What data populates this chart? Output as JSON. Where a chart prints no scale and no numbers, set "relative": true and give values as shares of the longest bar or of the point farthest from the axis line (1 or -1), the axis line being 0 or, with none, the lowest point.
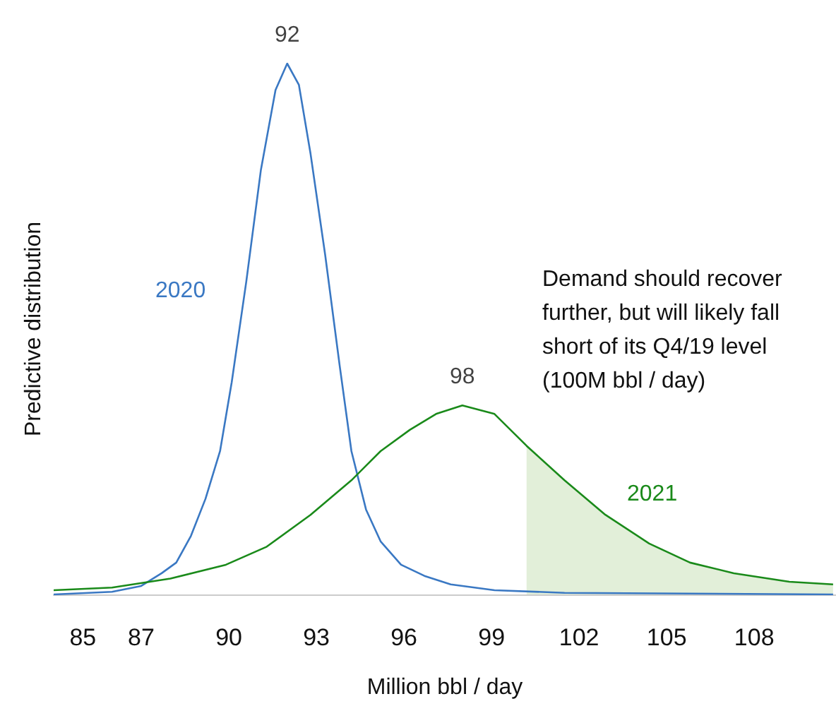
{
  "chart_data": {
    "type": "line",
    "relative": true,
    "xlabel": "Million bbl / day",
    "ylabel": "Predictive distribution",
    "xlim": [
      84,
      110.8
    ],
    "xticks": [
      85,
      87,
      90,
      93,
      96,
      99,
      102,
      105,
      108
    ],
    "grid": false,
    "legend": false,
    "marker": "none",
    "tick_labels": "x",
    "annotations": [
      {
        "text": "92",
        "x": 92,
        "y": 1
      },
      {
        "text": "98",
        "x": 98,
        "y": 0.356
      },
      "Demand should recover further, but will likely fall short of its Q4/19 level (100M bbl / day)"
    ],
    "series": [
      {
        "name": "2020",
        "color": "#3a78c3",
        "x": [
          84,
          86,
          87,
          87.7,
          88.2,
          88.7,
          89.2,
          89.7,
          90.1,
          90.6,
          91.1,
          91.6,
          92,
          92.4,
          92.8,
          93.3,
          93.8,
          94.2,
          94.7,
          95.2,
          95.9,
          96.7,
          97.6,
          99.1,
          101.5,
          110.7
        ],
        "values": [
          0,
          0.005,
          0.016,
          0.04,
          0.06,
          0.11,
          0.18,
          0.27,
          0.4,
          0.59,
          0.8,
          0.95,
          1,
          0.96,
          0.83,
          0.64,
          0.43,
          0.27,
          0.16,
          0.1,
          0.056,
          0.035,
          0.019,
          0.008,
          0.003,
          0
        ]
      },
      {
        "name": "2021",
        "color": "#1a8a1a",
        "x": [
          84,
          86,
          88,
          89.9,
          91.3,
          92.8,
          94.2,
          95.2,
          96.2,
          97.1,
          98,
          99.1,
          100.2,
          101.5,
          102.9,
          104.4,
          105.8,
          107.3,
          109.2,
          110.7
        ],
        "values": [
          0.008,
          0.013,
          0.03,
          0.056,
          0.09,
          0.15,
          0.215,
          0.27,
          0.31,
          0.34,
          0.356,
          0.34,
          0.28,
          0.215,
          0.15,
          0.096,
          0.06,
          0.04,
          0.024,
          0.019
        ]
      },
      {
        "type": "area",
        "color": "#e2efd9",
        "x": [
          100.2,
          101.5,
          102.9,
          104.4,
          105.8,
          107.3,
          109.2,
          110.7
        ],
        "values": [
          0.28,
          0.215,
          0.15,
          0.096,
          0.06,
          0.04,
          0.024,
          0.019
        ]
      }
    ]
  }
}
